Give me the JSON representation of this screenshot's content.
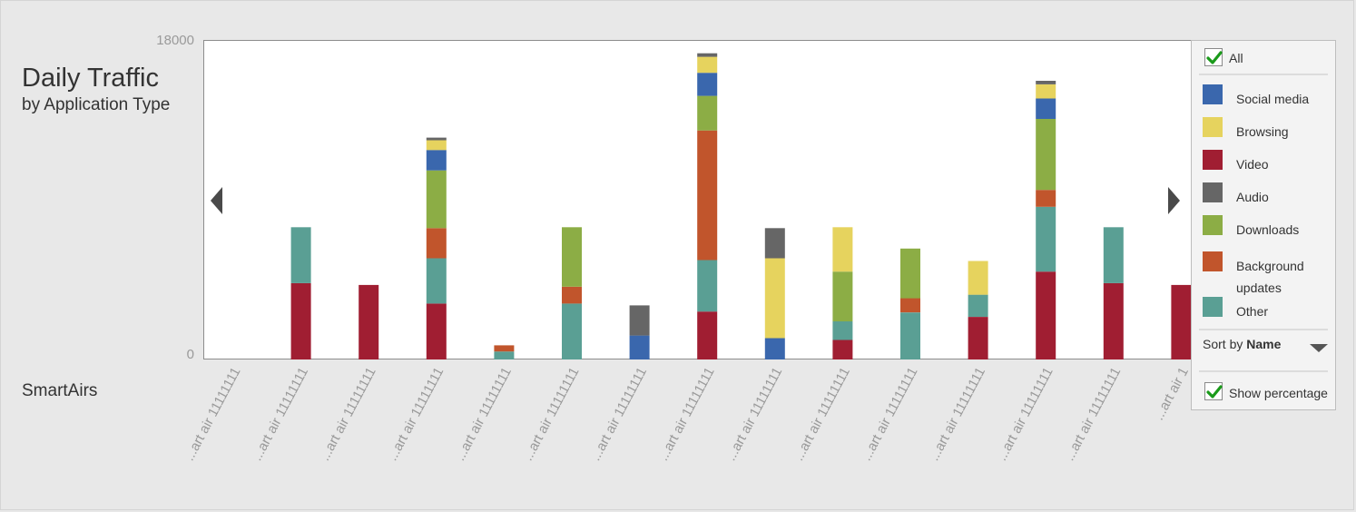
{
  "header": {
    "title": "Daily Traffic",
    "subtitle": "by Application Type",
    "company": "SmartAirs"
  },
  "legend": {
    "all_label": "All",
    "sort_prefix": "Sort by ",
    "sort_value": "Name",
    "show_percentage_label": "Show percentage",
    "items": [
      {
        "name": "Social media",
        "color": "#3a67ad"
      },
      {
        "name": "Browsing",
        "color": "#e6d35e"
      },
      {
        "name": "Video",
        "color": "#a01e32"
      },
      {
        "name": "Audio",
        "color": "#666666"
      },
      {
        "name": "Downloads",
        "color": "#8cad45"
      },
      {
        "name": "Background updates",
        "color": "#c1552c"
      },
      {
        "name": "Other",
        "color": "#5a9f94"
      }
    ]
  },
  "chart_data": {
    "type": "bar",
    "stacked": true,
    "ylim": [
      0,
      18000
    ],
    "yticks": [
      "0",
      "18000"
    ],
    "categories": [
      "...art air 11111111",
      "...art air 11111111",
      "...art air 11111111",
      "...art air 11111111",
      "...art air 11111111",
      "...art air 11111111",
      "...art air 11111111",
      "...art air 11111111",
      "...art air 11111111",
      "...art air 11111111",
      "...art air 11111111",
      "...art air 11111111",
      "...art air 11111111",
      "...art air 11111111",
      "...art air 1"
    ],
    "series": [
      {
        "name": "Video",
        "color": "#a01e32",
        "values": [
          0,
          4300,
          4200,
          3150,
          0,
          0,
          0,
          2700,
          0,
          1100,
          0,
          2400,
          4950,
          4300,
          4200
        ]
      },
      {
        "name": "Other",
        "color": "#5a9f94",
        "values": [
          0,
          3150,
          0,
          2550,
          450,
          3150,
          0,
          2900,
          0,
          1050,
          2650,
          1250,
          3650,
          3150,
          0
        ]
      },
      {
        "name": "Background updates",
        "color": "#c1552c",
        "values": [
          0,
          0,
          0,
          1700,
          350,
          950,
          0,
          7300,
          0,
          0,
          800,
          0,
          950,
          0,
          0
        ]
      },
      {
        "name": "Downloads",
        "color": "#8cad45",
        "values": [
          0,
          0,
          0,
          3250,
          0,
          3350,
          0,
          1950,
          0,
          2800,
          2800,
          0,
          4000,
          0,
          0
        ]
      },
      {
        "name": "Social media",
        "color": "#3a67ad",
        "values": [
          0,
          0,
          0,
          1150,
          0,
          0,
          1350,
          1300,
          1200,
          0,
          0,
          0,
          1150,
          0,
          0
        ]
      },
      {
        "name": "Browsing",
        "color": "#e6d35e",
        "values": [
          0,
          0,
          0,
          550,
          0,
          0,
          0,
          900,
          4500,
          2500,
          0,
          1900,
          800,
          0,
          0
        ]
      },
      {
        "name": "Audio",
        "color": "#666666",
        "values": [
          0,
          0,
          0,
          150,
          0,
          0,
          1700,
          200,
          1700,
          0,
          0,
          0,
          200,
          0,
          0
        ]
      }
    ]
  }
}
